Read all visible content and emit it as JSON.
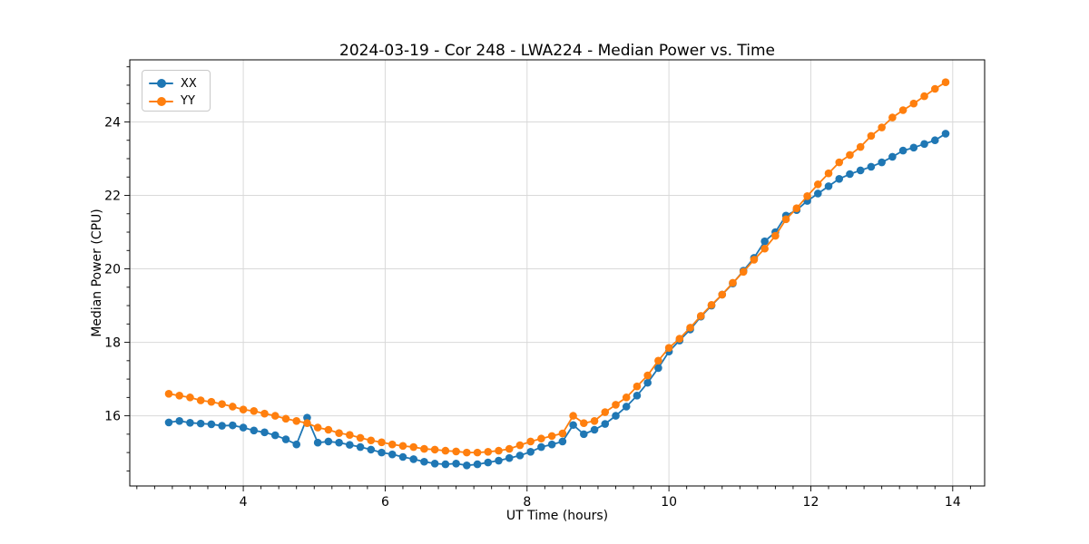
{
  "chart_data": {
    "type": "line",
    "title": "2024-03-19 - Cor 248 - LWA224 - Median Power vs. Time",
    "xlabel": "UT Time (hours)",
    "ylabel": "Median Power (CPU)",
    "xlim": [
      2.4,
      14.45
    ],
    "ylim": [
      14.09,
      25.69
    ],
    "xticks": [
      4,
      6,
      8,
      10,
      12,
      14
    ],
    "yticks": [
      16,
      18,
      20,
      22,
      24
    ],
    "minor_x_step": 0.25,
    "minor_y_step": 0.5,
    "grid": true,
    "grid_color": "#d9d9d9",
    "legend_position": "upper left",
    "x": [
      2.95,
      3.1,
      3.25,
      3.4,
      3.55,
      3.7,
      3.85,
      4,
      4.15,
      4.3,
      4.45,
      4.6,
      4.75,
      4.9,
      5.05,
      5.2,
      5.35,
      5.5,
      5.65,
      5.8,
      5.95,
      6.1,
      6.25,
      6.4,
      6.55,
      6.7,
      6.85,
      7,
      7.15,
      7.3,
      7.45,
      7.6,
      7.75,
      7.9,
      8.05,
      8.2,
      8.35,
      8.5,
      8.65,
      8.8,
      8.95,
      9.1,
      9.25,
      9.4,
      9.55,
      9.7,
      9.85,
      10,
      10.15,
      10.3,
      10.45,
      10.6,
      10.75,
      10.9,
      11.05,
      11.2,
      11.35,
      11.5,
      11.65,
      11.8,
      11.95,
      12.1,
      12.25,
      12.4,
      12.55,
      12.7,
      12.85,
      13,
      13.15,
      13.3,
      13.45,
      13.6,
      13.75,
      13.9
    ],
    "series": [
      {
        "name": "XX",
        "color": "#1f77b4",
        "values": [
          15.82,
          15.86,
          15.81,
          15.79,
          15.77,
          15.73,
          15.74,
          15.68,
          15.6,
          15.55,
          15.47,
          15.36,
          15.22,
          15.95,
          15.27,
          15.3,
          15.27,
          15.21,
          15.15,
          15.08,
          15.0,
          14.95,
          14.88,
          14.82,
          14.75,
          14.7,
          14.68,
          14.7,
          14.65,
          14.68,
          14.73,
          14.78,
          14.85,
          14.92,
          15.02,
          15.15,
          15.22,
          15.3,
          15.75,
          15.5,
          15.62,
          15.78,
          16.0,
          16.25,
          16.55,
          16.9,
          17.3,
          17.75,
          18.05,
          18.35,
          18.7,
          19.0,
          19.3,
          19.6,
          19.95,
          20.3,
          20.75,
          21.0,
          21.45,
          21.6,
          21.85,
          22.05,
          22.25,
          22.45,
          22.58,
          22.68,
          22.78,
          22.9,
          23.05,
          23.22,
          23.3,
          23.4,
          23.5,
          23.68
        ]
      },
      {
        "name": "YY",
        "color": "#ff7f0e",
        "values": [
          16.6,
          16.55,
          16.5,
          16.42,
          16.38,
          16.32,
          16.25,
          16.17,
          16.13,
          16.06,
          16.0,
          15.92,
          15.86,
          15.8,
          15.68,
          15.62,
          15.53,
          15.48,
          15.4,
          15.33,
          15.28,
          15.22,
          15.18,
          15.15,
          15.1,
          15.08,
          15.05,
          15.03,
          15.0,
          15.0,
          15.02,
          15.05,
          15.1,
          15.2,
          15.3,
          15.38,
          15.45,
          15.52,
          16.0,
          15.8,
          15.86,
          16.1,
          16.3,
          16.5,
          16.8,
          17.1,
          17.5,
          17.85,
          18.1,
          18.4,
          18.72,
          19.02,
          19.3,
          19.62,
          19.92,
          20.25,
          20.55,
          20.9,
          21.35,
          21.65,
          21.98,
          22.3,
          22.6,
          22.9,
          23.1,
          23.32,
          23.62,
          23.85,
          24.12,
          24.32,
          24.5,
          24.7,
          24.9,
          25.08
        ]
      }
    ]
  }
}
